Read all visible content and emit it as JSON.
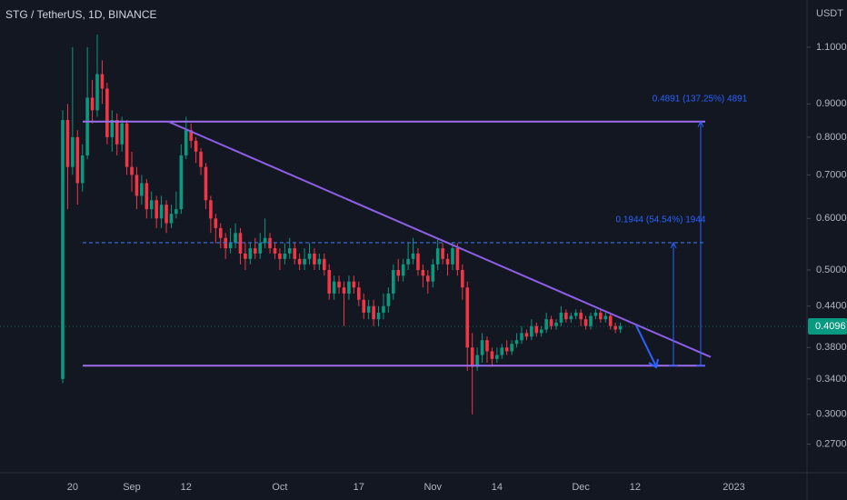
{
  "chart_data": {
    "type": "candlestick",
    "title": "STG / TetherUS, 1D, BINANCE",
    "y_unit": "USDT",
    "log_scale": true,
    "ylim": [
      0.244,
      1.3
    ],
    "yticks": [
      {
        "value": 1.1,
        "label": "1.1000"
      },
      {
        "value": 0.9,
        "label": "0.9000"
      },
      {
        "value": 0.8,
        "label": "0.8000"
      },
      {
        "value": 0.7,
        "label": "0.7000"
      },
      {
        "value": 0.6,
        "label": "0.6000"
      },
      {
        "value": 0.5,
        "label": "0.5000"
      },
      {
        "value": 0.44,
        "label": "0.4400"
      },
      {
        "value": 0.38,
        "label": "0.3800"
      },
      {
        "value": 0.34,
        "label": "0.3400"
      },
      {
        "value": 0.3,
        "label": "0.3000"
      },
      {
        "value": 0.27,
        "label": "0.2700"
      }
    ],
    "up_color": "#089981",
    "down_color": "#f23645",
    "last_price": {
      "value": 0.4096,
      "label": "0.4096"
    },
    "categories": [
      null,
      null,
      "20",
      null,
      null,
      null,
      null,
      null,
      null,
      null,
      null,
      null,
      null,
      null,
      "Sep",
      null,
      null,
      null,
      null,
      null,
      null,
      null,
      null,
      null,
      null,
      "12",
      null,
      null,
      null,
      null,
      null,
      null,
      null,
      null,
      null,
      null,
      null,
      null,
      null,
      null,
      null,
      null,
      null,
      null,
      "Oct",
      null,
      null,
      null,
      null,
      null,
      null,
      null,
      null,
      null,
      null,
      null,
      null,
      null,
      null,
      null,
      "17",
      null,
      null,
      null,
      null,
      null,
      null,
      null,
      null,
      null,
      null,
      null,
      null,
      null,
      null,
      "Nov",
      null,
      null,
      null,
      null,
      null,
      null,
      null,
      null,
      null,
      null,
      null,
      null,
      "14",
      null,
      null,
      null,
      null,
      null,
      null,
      null,
      null,
      null,
      null,
      null,
      null,
      null,
      null,
      null,
      null,
      "Dec",
      null,
      null,
      null,
      null,
      null,
      null,
      null,
      null,
      null,
      null,
      "12",
      null,
      null,
      null,
      null,
      null,
      null,
      null,
      null,
      null,
      null,
      null,
      null,
      null,
      null,
      null,
      null,
      null,
      null,
      null,
      "2023",
      null
    ],
    "open": [
      0.34,
      0.85,
      0.72,
      0.8,
      0.68,
      0.75,
      0.92,
      0.88,
      1.0,
      0.95,
      0.8,
      0.85,
      0.78,
      0.84,
      0.72,
      0.7,
      0.65,
      0.68,
      0.62,
      0.64,
      0.6,
      0.63,
      0.59,
      0.61,
      0.62,
      0.75,
      0.82,
      0.79,
      0.76,
      0.72,
      0.64,
      0.6,
      0.58,
      0.56,
      0.54,
      0.55,
      0.57,
      0.53,
      0.52,
      0.54,
      0.53,
      0.55,
      0.56,
      0.54,
      0.53,
      0.52,
      0.53,
      0.54,
      0.52,
      0.51,
      0.52,
      0.53,
      0.51,
      0.52,
      0.5,
      0.46,
      0.48,
      0.47,
      0.46,
      0.48,
      0.47,
      0.45,
      0.43,
      0.44,
      0.42,
      0.43,
      0.44,
      0.46,
      0.5,
      0.49,
      0.51,
      0.52,
      0.53,
      0.5,
      0.49,
      0.48,
      0.51,
      0.54,
      0.52,
      0.51,
      0.54,
      0.5,
      0.47,
      0.38,
      0.355,
      0.37,
      0.39,
      0.375,
      0.365,
      0.37,
      0.38,
      0.375,
      0.385,
      0.39,
      0.4,
      0.395,
      0.41,
      0.4,
      0.405,
      0.42,
      0.41,
      0.415,
      0.43,
      0.42,
      0.425,
      0.43,
      0.42,
      0.41,
      0.425,
      0.43,
      0.42,
      0.425,
      0.41,
      0.405,
      null,
      null,
      null,
      null,
      null,
      null,
      null,
      null,
      null,
      null,
      null,
      null,
      null,
      null,
      null,
      null,
      null,
      null,
      null,
      null,
      null,
      null,
      null,
      null
    ],
    "high": [
      0.88,
      0.9,
      1.1,
      0.82,
      0.78,
      1.1,
      0.98,
      1.15,
      1.05,
      0.97,
      0.88,
      0.87,
      0.86,
      0.85,
      0.76,
      0.72,
      0.7,
      0.69,
      0.66,
      0.65,
      0.65,
      0.64,
      0.63,
      0.66,
      0.78,
      0.86,
      0.84,
      0.8,
      0.77,
      0.73,
      0.65,
      0.61,
      0.59,
      0.57,
      0.58,
      0.59,
      0.58,
      0.55,
      0.55,
      0.56,
      0.57,
      0.6,
      0.57,
      0.55,
      0.54,
      0.55,
      0.56,
      0.55,
      0.53,
      0.54,
      0.55,
      0.54,
      0.53,
      0.53,
      0.51,
      0.49,
      0.49,
      0.48,
      0.49,
      0.49,
      0.48,
      0.46,
      0.45,
      0.45,
      0.44,
      0.46,
      0.47,
      0.51,
      0.52,
      0.52,
      0.55,
      0.56,
      0.54,
      0.51,
      0.5,
      0.52,
      0.56,
      0.55,
      0.53,
      0.55,
      0.55,
      0.51,
      0.48,
      0.4,
      0.38,
      0.4,
      0.395,
      0.38,
      0.38,
      0.385,
      0.39,
      0.39,
      0.4,
      0.41,
      0.405,
      0.42,
      0.415,
      0.41,
      0.43,
      0.425,
      0.42,
      0.44,
      0.435,
      0.43,
      0.435,
      0.435,
      0.425,
      0.43,
      0.435,
      0.435,
      0.43,
      0.43,
      0.415,
      0.415,
      null,
      null,
      null,
      null,
      null,
      null,
      null,
      null,
      null,
      null,
      null,
      null,
      null,
      null,
      null,
      null,
      null,
      null,
      null,
      null,
      null,
      null,
      null,
      null
    ],
    "low": [
      0.335,
      0.62,
      0.7,
      0.63,
      0.66,
      0.74,
      0.84,
      0.86,
      0.9,
      0.78,
      0.76,
      0.75,
      0.76,
      0.7,
      0.66,
      0.62,
      0.63,
      0.6,
      0.6,
      0.58,
      0.58,
      0.57,
      0.58,
      0.6,
      0.61,
      0.74,
      0.77,
      0.73,
      0.7,
      0.62,
      0.57,
      0.55,
      0.54,
      0.52,
      0.53,
      0.54,
      0.51,
      0.5,
      0.51,
      0.52,
      0.52,
      0.54,
      0.53,
      0.52,
      0.5,
      0.51,
      0.52,
      0.51,
      0.5,
      0.5,
      0.51,
      0.5,
      0.5,
      0.49,
      0.45,
      0.45,
      0.46,
      0.41,
      0.45,
      0.46,
      0.44,
      0.42,
      0.42,
      0.41,
      0.41,
      0.42,
      0.43,
      0.45,
      0.48,
      0.48,
      0.5,
      0.51,
      0.49,
      0.47,
      0.46,
      0.47,
      0.5,
      0.51,
      0.49,
      0.5,
      0.49,
      0.45,
      0.35,
      0.3,
      0.35,
      0.36,
      0.36,
      0.355,
      0.36,
      0.365,
      0.37,
      0.37,
      0.38,
      0.385,
      0.39,
      0.39,
      0.395,
      0.395,
      0.4,
      0.405,
      0.405,
      0.41,
      0.415,
      0.415,
      0.42,
      0.41,
      0.405,
      0.405,
      0.42,
      0.415,
      0.415,
      0.405,
      0.4,
      0.4,
      null,
      null,
      null,
      null,
      null,
      null,
      null,
      null,
      null,
      null,
      null,
      null,
      null,
      null,
      null,
      null,
      null,
      null,
      null,
      null,
      null,
      null,
      null,
      null
    ],
    "close": [
      0.85,
      0.72,
      0.8,
      0.68,
      0.75,
      0.92,
      0.88,
      1.0,
      0.95,
      0.8,
      0.85,
      0.78,
      0.84,
      0.72,
      0.7,
      0.65,
      0.68,
      0.62,
      0.64,
      0.6,
      0.63,
      0.59,
      0.61,
      0.62,
      0.75,
      0.82,
      0.79,
      0.76,
      0.72,
      0.64,
      0.6,
      0.58,
      0.56,
      0.54,
      0.55,
      0.57,
      0.53,
      0.52,
      0.54,
      0.53,
      0.55,
      0.56,
      0.54,
      0.53,
      0.52,
      0.53,
      0.54,
      0.52,
      0.51,
      0.52,
      0.53,
      0.51,
      0.52,
      0.5,
      0.46,
      0.48,
      0.47,
      0.46,
      0.48,
      0.47,
      0.45,
      0.43,
      0.44,
      0.42,
      0.43,
      0.44,
      0.46,
      0.5,
      0.49,
      0.51,
      0.52,
      0.53,
      0.5,
      0.49,
      0.48,
      0.51,
      0.54,
      0.52,
      0.51,
      0.54,
      0.5,
      0.47,
      0.38,
      0.355,
      0.37,
      0.39,
      0.375,
      0.365,
      0.37,
      0.38,
      0.375,
      0.385,
      0.39,
      0.4,
      0.395,
      0.41,
      0.4,
      0.405,
      0.42,
      0.41,
      0.415,
      0.43,
      0.42,
      0.425,
      0.43,
      0.42,
      0.41,
      0.425,
      0.43,
      0.42,
      0.425,
      0.41,
      0.405,
      0.41,
      null,
      null,
      null,
      null,
      null,
      null,
      null,
      null,
      null,
      null,
      null,
      null,
      null,
      null,
      null,
      null,
      null,
      null,
      null,
      null,
      null,
      null,
      null,
      null
    ],
    "levels": [
      0.8455,
      0.5508,
      0.3564
    ],
    "trendline": [
      0.8455,
      0.3675
    ],
    "measurements": [
      {
        "from": 0.3564,
        "to": 0.8455,
        "label": "0.4891 (137.25%) 4891"
      },
      {
        "from": 0.3564,
        "to": 0.5508,
        "label": "0.1944 (54.54%) 1944"
      }
    ]
  }
}
